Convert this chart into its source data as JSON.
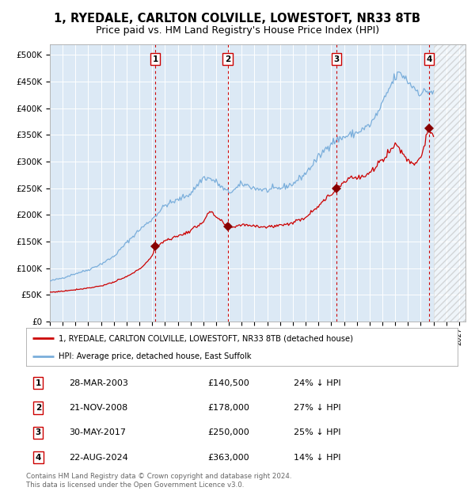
{
  "title": "1, RYEDALE, CARLTON COLVILLE, LOWESTOFT, NR33 8TB",
  "subtitle": "Price paid vs. HM Land Registry's House Price Index (HPI)",
  "xlim_start": 1995.0,
  "xlim_end": 2027.5,
  "ylim": [
    0,
    520000
  ],
  "yticks": [
    0,
    50000,
    100000,
    150000,
    200000,
    250000,
    300000,
    350000,
    400000,
    450000,
    500000
  ],
  "ytick_labels": [
    "£0",
    "£50K",
    "£100K",
    "£150K",
    "£200K",
    "£250K",
    "£300K",
    "£350K",
    "£400K",
    "£450K",
    "£500K"
  ],
  "xticks": [
    1995,
    1996,
    1997,
    1998,
    1999,
    2000,
    2001,
    2002,
    2003,
    2004,
    2005,
    2006,
    2007,
    2008,
    2009,
    2010,
    2011,
    2012,
    2013,
    2014,
    2015,
    2016,
    2017,
    2018,
    2019,
    2020,
    2021,
    2022,
    2023,
    2024,
    2025,
    2026,
    2027
  ],
  "background_color": "#dce9f5",
  "hatch_region_start": 2025.0,
  "hatch_region_end": 2027.5,
  "sale_dates": [
    2003.23,
    2008.9,
    2017.42,
    2024.64
  ],
  "sale_prices": [
    140500,
    178000,
    250000,
    363000
  ],
  "sale_labels": [
    "1",
    "2",
    "3",
    "4"
  ],
  "vline_color": "#cc0000",
  "hpi_color": "#7aaedb",
  "property_color": "#cc0000",
  "legend_label_property": "1, RYEDALE, CARLTON COLVILLE, LOWESTOFT, NR33 8TB (detached house)",
  "legend_label_hpi": "HPI: Average price, detached house, East Suffolk",
  "table_rows": [
    [
      "1",
      "28-MAR-2003",
      "£140,500",
      "24% ↓ HPI"
    ],
    [
      "2",
      "21-NOV-2008",
      "£178,000",
      "27% ↓ HPI"
    ],
    [
      "3",
      "30-MAY-2017",
      "£250,000",
      "25% ↓ HPI"
    ],
    [
      "4",
      "22-AUG-2024",
      "£363,000",
      "14% ↓ HPI"
    ]
  ],
  "footnote": "Contains HM Land Registry data © Crown copyright and database right 2024.\nThis data is licensed under the Open Government Licence v3.0.",
  "title_fontsize": 10.5,
  "subtitle_fontsize": 9
}
